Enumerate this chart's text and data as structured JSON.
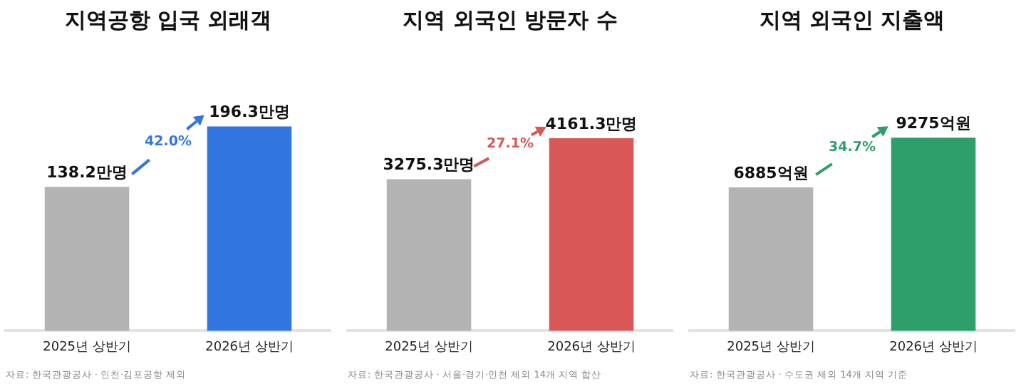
{
  "chart_data": [
    {
      "type": "bar",
      "title": "지역공항 입국 외래객",
      "categories": [
        "2025년 상반기",
        "2026년 상반기"
      ],
      "values": [
        138.2,
        196.3
      ],
      "value_labels": [
        "138.2만명",
        "196.3만명"
      ],
      "colors": [
        "#b3b3b3",
        "#3375e0"
      ],
      "tick_labels": "x",
      "grid": false,
      "legend": false,
      "annotations": [
        "42.0%",
        "자료: 한국관광공사 · 인천·김포공항 제외"
      ]
    },
    {
      "type": "bar",
      "title": "지역 외국인 방문자 수",
      "categories": [
        "2025년 상반기",
        "2026년 상반기"
      ],
      "values": [
        3275.3,
        4161.3
      ],
      "value_labels": [
        "3275.3만명",
        "4161.3만명"
      ],
      "colors": [
        "#b3b3b3",
        "#d95757"
      ],
      "tick_labels": "x",
      "grid": false,
      "legend": false,
      "annotations": [
        "27.1%",
        "자료: 한국관광공사 · 서울·경기·인천 제외 14개 지역 합산"
      ]
    },
    {
      "type": "bar",
      "title": "지역 외국인 지출액",
      "categories": [
        "2025년 상반기",
        "2026년 상반기"
      ],
      "values": [
        6885,
        9275
      ],
      "value_labels": [
        "6885억원",
        "9275억원"
      ],
      "colors": [
        "#b3b3b3",
        "#2e9e6a"
      ],
      "tick_labels": "x",
      "grid": false,
      "legend": false,
      "annotations": [
        "34.7%",
        "자료: 한국관광공사 · 수도권 제외 14개 지역 기준"
      ]
    }
  ]
}
